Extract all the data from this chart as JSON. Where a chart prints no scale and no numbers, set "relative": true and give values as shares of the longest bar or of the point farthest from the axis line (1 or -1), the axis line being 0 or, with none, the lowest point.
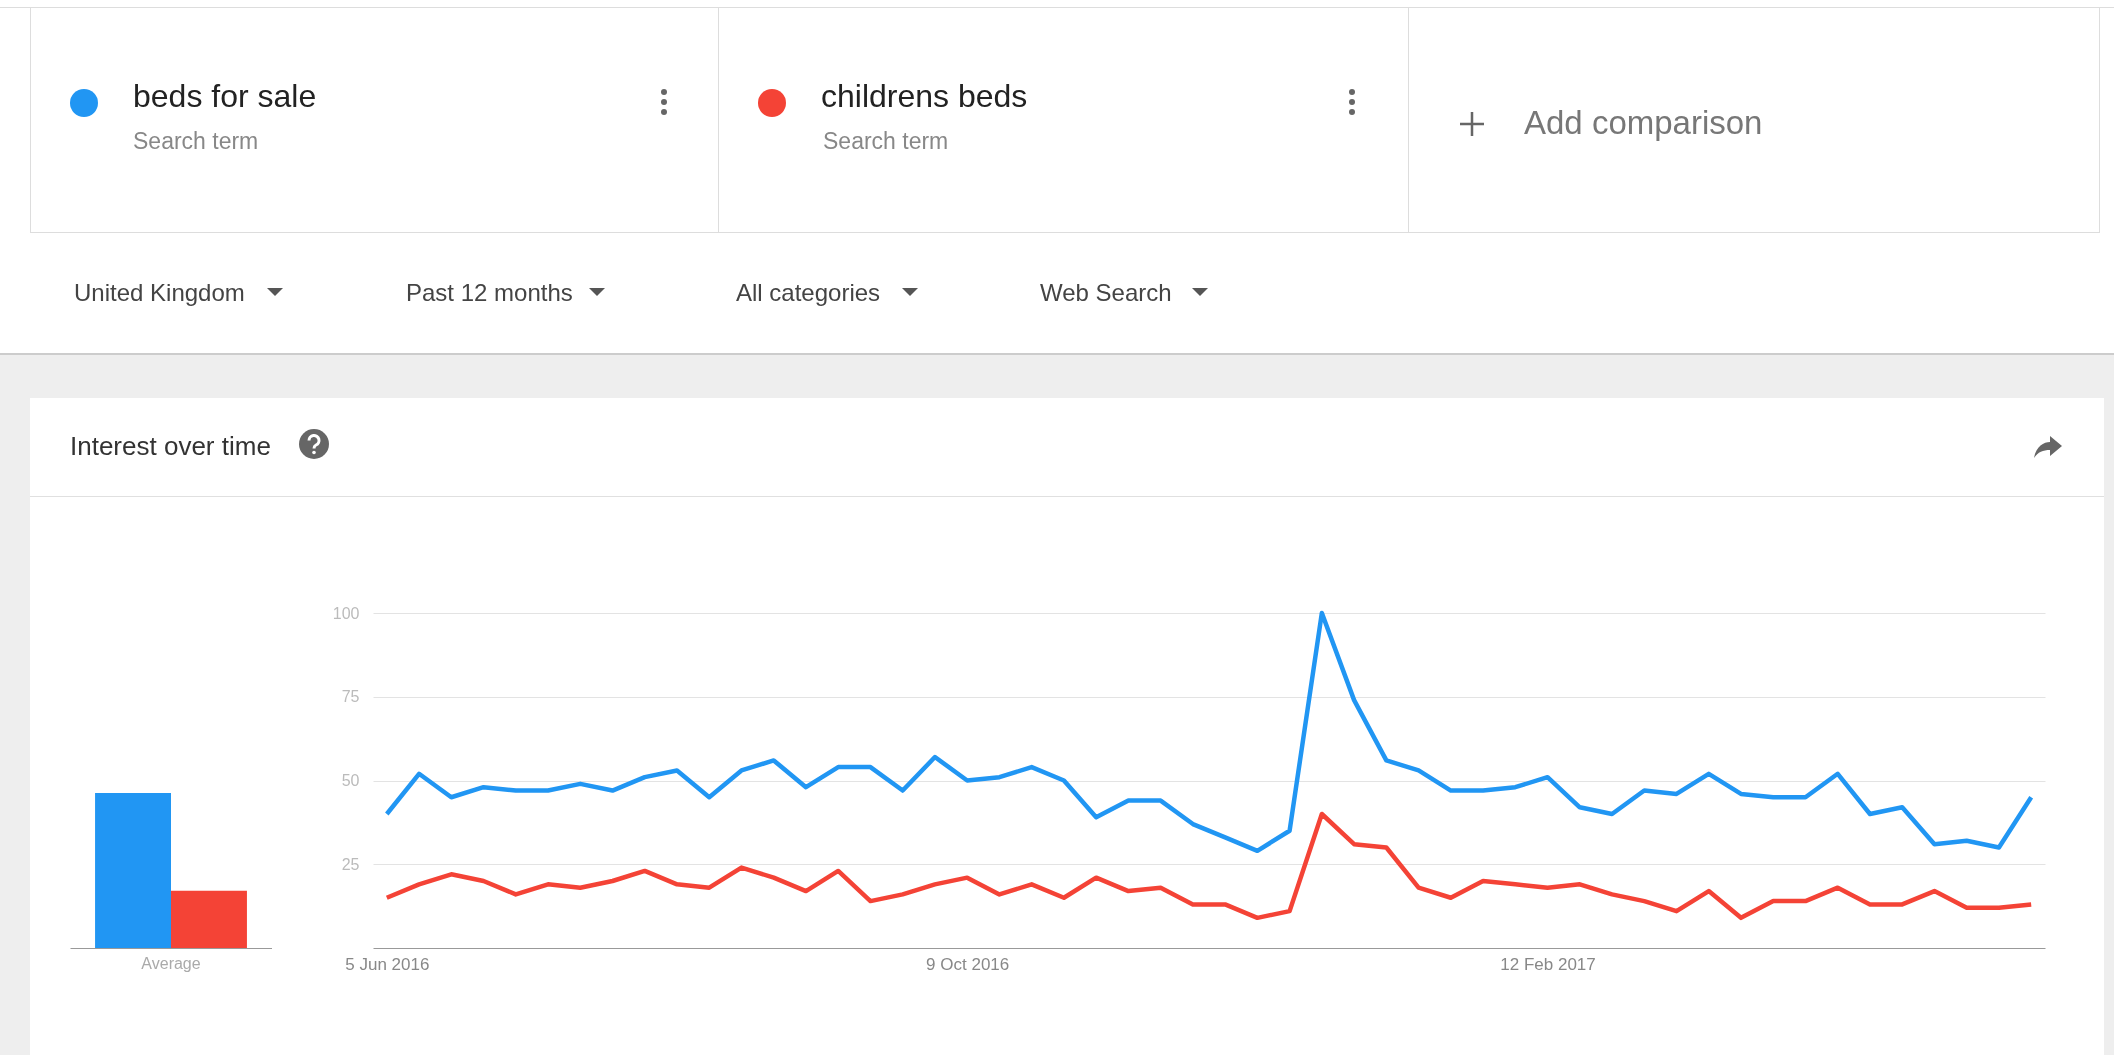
{
  "chart_data": [
    {
      "type": "bar",
      "relative": true,
      "categories": [
        null,
        null
      ],
      "values": [
        1,
        0.37
      ],
      "colors": [
        "#2196f3",
        "#f44336"
      ],
      "annotations": [
        "Average"
      ]
    },
    {
      "type": "line",
      "title": "Interest over time",
      "legend": "top",
      "grid": "y",
      "ylim": [
        0,
        100
      ],
      "yticks": [
        25,
        50,
        75,
        100
      ],
      "xlim": [
        "2016-06-02",
        "2017-05-31"
      ],
      "xticks": [
        {
          "value": "2016-06-05",
          "label": "5 Jun 2016"
        },
        {
          "value": "2016-10-09",
          "label": "9 Oct 2016"
        },
        {
          "value": "2017-02-12",
          "label": "12 Feb 2017"
        }
      ],
      "x": [
        "2016-06-05",
        "2016-06-12",
        "2016-06-19",
        "2016-06-26",
        "2016-07-03",
        "2016-07-10",
        "2016-07-17",
        "2016-07-24",
        "2016-07-31",
        "2016-08-07",
        "2016-08-14",
        "2016-08-21",
        "2016-08-28",
        "2016-09-04",
        "2016-09-11",
        "2016-09-18",
        "2016-09-25",
        "2016-10-02",
        "2016-10-09",
        "2016-10-16",
        "2016-10-23",
        "2016-10-30",
        "2016-11-06",
        "2016-11-13",
        "2016-11-20",
        "2016-11-27",
        "2016-12-04",
        "2016-12-11",
        "2016-12-18",
        "2016-12-25",
        "2017-01-01",
        "2017-01-08",
        "2017-01-15",
        "2017-01-22",
        "2017-01-29",
        "2017-02-05",
        "2017-02-12",
        "2017-02-19",
        "2017-02-26",
        "2017-03-05",
        "2017-03-12",
        "2017-03-19",
        "2017-03-26",
        "2017-04-02",
        "2017-04-09",
        "2017-04-16",
        "2017-04-23",
        "2017-04-30",
        "2017-05-07",
        "2017-05-14",
        "2017-05-21",
        "2017-05-28"
      ],
      "series": [
        {
          "name": "beds for sale",
          "color": "#2196f3",
          "values": [
            40,
            52,
            45,
            48,
            47,
            47,
            49,
            47,
            51,
            53,
            45,
            53,
            56,
            48,
            54,
            54,
            47,
            57,
            50,
            51,
            54,
            50,
            39,
            44,
            44,
            37,
            33,
            29,
            35,
            100,
            74,
            56,
            53,
            47,
            47,
            48,
            51,
            42,
            40,
            47,
            46,
            52,
            46,
            45,
            45,
            52,
            40,
            42,
            31,
            32,
            30,
            45
          ]
        },
        {
          "name": "childrens beds",
          "color": "#f44336",
          "values": [
            15,
            19,
            22,
            20,
            16,
            19,
            18,
            20,
            23,
            19,
            18,
            24,
            21,
            17,
            23,
            14,
            16,
            19,
            21,
            16,
            19,
            15,
            21,
            17,
            18,
            13,
            13,
            9,
            11,
            40,
            31,
            30,
            18,
            15,
            20,
            19,
            18,
            19,
            16,
            14,
            11,
            17,
            9,
            14,
            14,
            18,
            13,
            13,
            17,
            12,
            12,
            13
          ]
        }
      ],
      "annotations": [
        "Search term",
        "Search term",
        "Add comparison",
        "United Kingdom",
        "Past 12 months",
        "All categories",
        "Web Search"
      ]
    }
  ]
}
